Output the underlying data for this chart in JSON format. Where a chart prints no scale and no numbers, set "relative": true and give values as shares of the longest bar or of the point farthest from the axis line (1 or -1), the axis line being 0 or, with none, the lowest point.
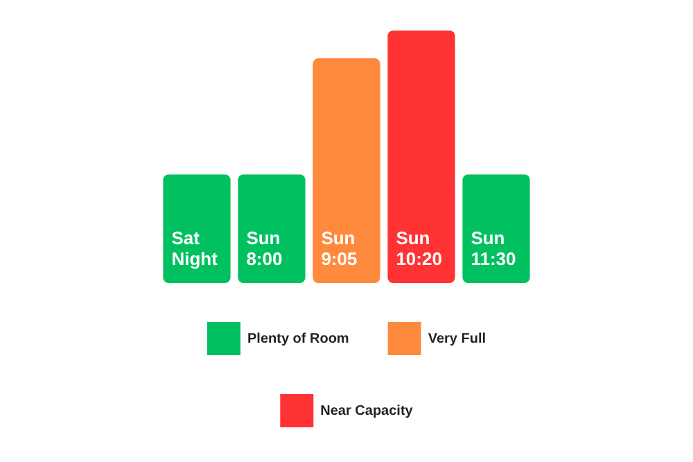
{
  "chart_data": {
    "type": "bar",
    "relative": true,
    "stacked": true,
    "legend": "bottom",
    "categories": [
      "Sat Night",
      "Sun 8:00",
      "Sun 9:05",
      "Sun 10:20",
      "Sun 11:30"
    ],
    "series": [
      {
        "name": "Plenty of Room",
        "color": "#00c060",
        "values": [
          0.43,
          0.43,
          null,
          null,
          0.43
        ]
      },
      {
        "name": "Very Full",
        "color": "#ff8a3d",
        "values": [
          null,
          null,
          0.89,
          null,
          null
        ]
      },
      {
        "name": "Near Capacity",
        "color": "#ff3333",
        "values": [
          null,
          null,
          null,
          1,
          null
        ]
      }
    ]
  }
}
